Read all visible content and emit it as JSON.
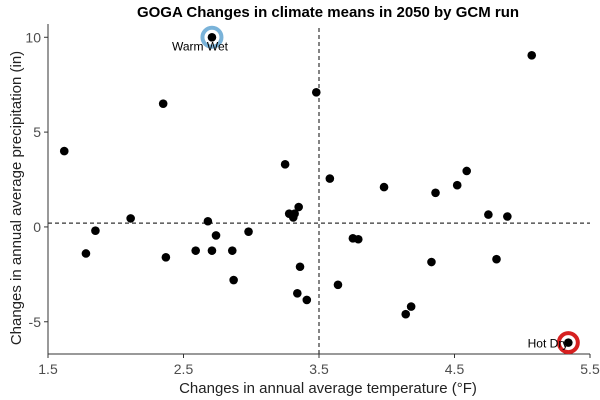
{
  "chart_data": {
    "type": "scatter",
    "title": "GOGA Changes in climate means in 2050 by GCM run",
    "xlabel": "Changes in annual average temperature (°F)",
    "ylabel": "Changes in annual average precipitation (in)",
    "xlim": [
      1.5,
      5.5
    ],
    "ylim": [
      -6.7,
      10.7
    ],
    "xticks": [
      1.5,
      2.5,
      3.5,
      4.5,
      5.5
    ],
    "xtick_labels": [
      "1.5",
      "2.5",
      "3.5",
      "4.5",
      "5.5"
    ],
    "yticks": [
      -5,
      0,
      5,
      10
    ],
    "ytick_labels": [
      "-5",
      "0",
      "5",
      "10"
    ],
    "grid": false,
    "reference_lines": {
      "vertical_x": 3.5,
      "horizontal_y": 0.2
    },
    "points": [
      {
        "x": 1.62,
        "y": 4.0
      },
      {
        "x": 1.78,
        "y": -1.4
      },
      {
        "x": 1.85,
        "y": -0.2
      },
      {
        "x": 2.11,
        "y": 0.45
      },
      {
        "x": 2.35,
        "y": 6.5
      },
      {
        "x": 2.37,
        "y": -1.6
      },
      {
        "x": 2.59,
        "y": -1.25
      },
      {
        "x": 2.68,
        "y": 0.3
      },
      {
        "x": 2.71,
        "y": -1.25
      },
      {
        "x": 2.74,
        "y": -0.45
      },
      {
        "x": 2.86,
        "y": -1.25
      },
      {
        "x": 2.87,
        "y": -2.8
      },
      {
        "x": 2.98,
        "y": -0.25
      },
      {
        "x": 3.25,
        "y": 3.3
      },
      {
        "x": 3.28,
        "y": 0.7
      },
      {
        "x": 3.31,
        "y": 0.5
      },
      {
        "x": 3.32,
        "y": 0.7
      },
      {
        "x": 3.35,
        "y": 1.05
      },
      {
        "x": 3.34,
        "y": -3.5
      },
      {
        "x": 3.36,
        "y": -2.1
      },
      {
        "x": 3.41,
        "y": -3.85
      },
      {
        "x": 3.48,
        "y": 7.1
      },
      {
        "x": 3.58,
        "y": 2.55
      },
      {
        "x": 3.64,
        "y": -3.05
      },
      {
        "x": 3.75,
        "y": -0.6
      },
      {
        "x": 3.79,
        "y": -0.65
      },
      {
        "x": 3.98,
        "y": 2.1
      },
      {
        "x": 4.14,
        "y": -4.6
      },
      {
        "x": 4.18,
        "y": -4.2
      },
      {
        "x": 4.33,
        "y": -1.85
      },
      {
        "x": 4.36,
        "y": 1.8
      },
      {
        "x": 4.52,
        "y": 2.2
      },
      {
        "x": 4.59,
        "y": 2.95
      },
      {
        "x": 4.75,
        "y": 0.65
      },
      {
        "x": 4.81,
        "y": -1.7
      },
      {
        "x": 4.89,
        "y": 0.55
      },
      {
        "x": 5.07,
        "y": 9.05
      },
      {
        "x": 2.71,
        "y": 10.0
      },
      {
        "x": 5.34,
        "y": -6.1
      }
    ],
    "highlights": [
      {
        "label": "Warm Wet",
        "x": 2.71,
        "y": 10.0,
        "color": "#7ab3d9",
        "label_anchor": "end",
        "label_dx": 16,
        "label_dy": 13
      },
      {
        "label": "Hot Dry",
        "x": 5.34,
        "y": -6.1,
        "color": "#d62020",
        "label_anchor": "end",
        "label_dx": 0,
        "label_dy": 5
      }
    ],
    "colors": {
      "point": "#000000",
      "refline": "#333333",
      "axis": "#333333"
    }
  }
}
